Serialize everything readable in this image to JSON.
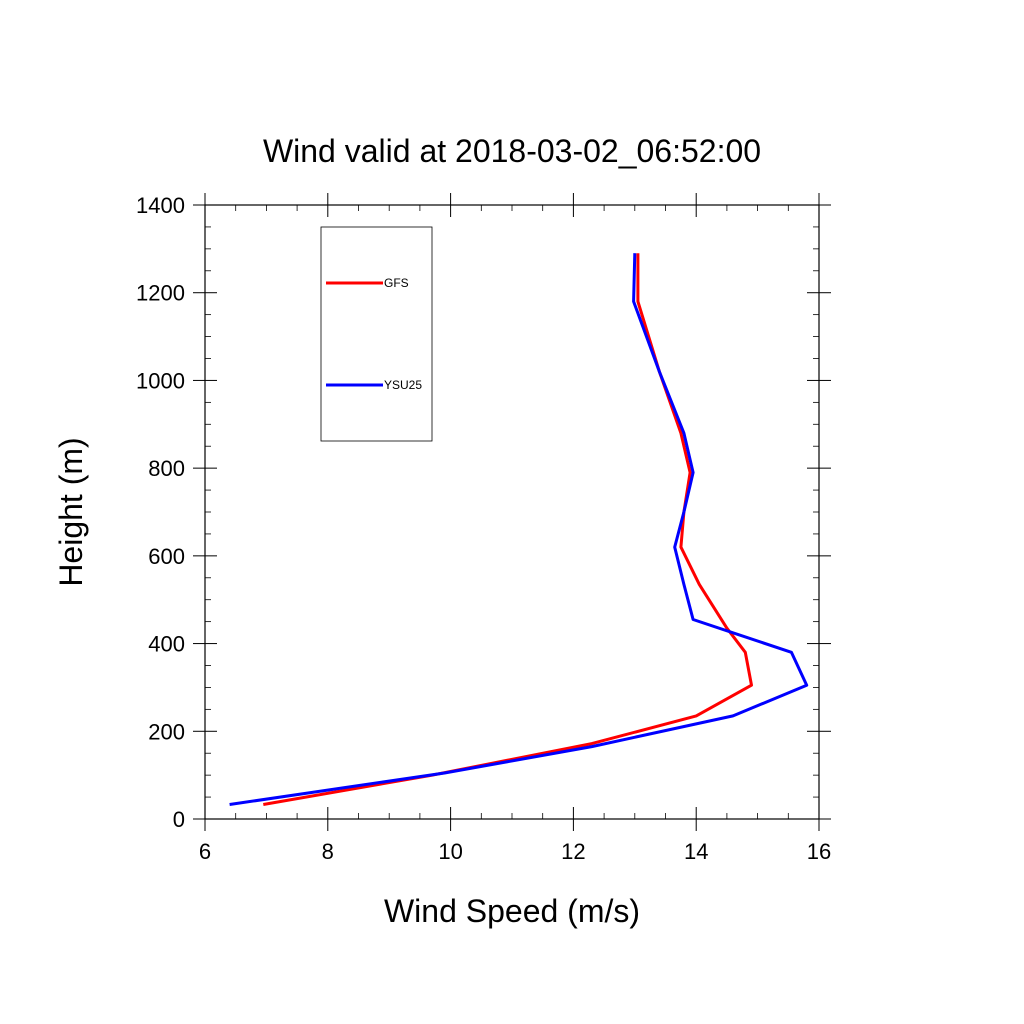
{
  "chart_data": {
    "type": "line",
    "title": "Wind valid at 2018-03-02_06:52:00",
    "xlabel": "Wind Speed (m/s)",
    "ylabel": "Height (m)",
    "xlim": [
      6,
      16
    ],
    "ylim": [
      0,
      1400
    ],
    "xticks": [
      "6",
      "8",
      "10",
      "12",
      "14",
      "16"
    ],
    "yticks": [
      "0",
      "200",
      "400",
      "600",
      "800",
      "1000",
      "1200",
      "1400"
    ],
    "legend_position": "top-left",
    "grid": false,
    "series": [
      {
        "name": "GFS",
        "color": "#ff0000",
        "x": [
          6.95,
          9.7,
          12.3,
          14.0,
          14.9,
          14.8,
          14.5,
          14.05,
          13.75,
          13.8,
          13.9,
          13.75,
          13.4,
          13.05,
          13.05
        ],
        "y": [
          33,
          100,
          172,
          235,
          305,
          380,
          435,
          535,
          620,
          700,
          790,
          880,
          1020,
          1180,
          1290
        ]
      },
      {
        "name": "YSU25",
        "color": "#0000ff",
        "x": [
          6.4,
          9.9,
          12.3,
          14.6,
          15.8,
          15.55,
          13.95,
          13.8,
          13.65,
          13.8,
          13.95,
          13.8,
          13.4,
          12.98,
          13.0
        ],
        "y": [
          33,
          105,
          165,
          235,
          305,
          380,
          455,
          535,
          620,
          700,
          790,
          880,
          1020,
          1180,
          1290
        ]
      }
    ]
  }
}
